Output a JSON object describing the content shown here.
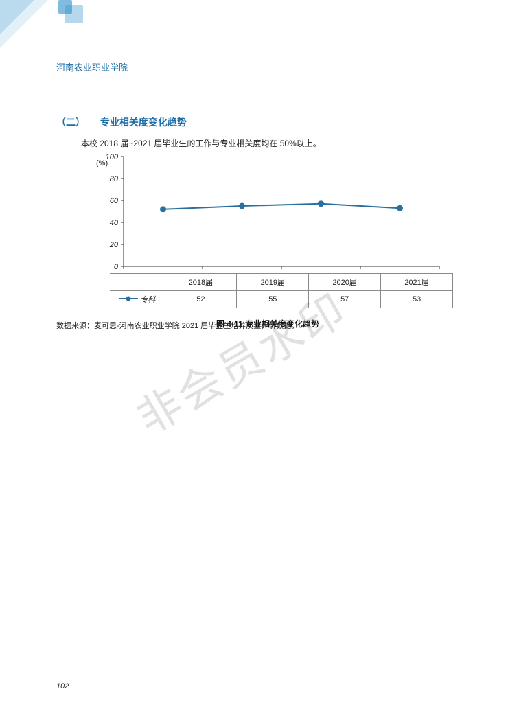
{
  "header": {
    "institution": "河南农业职业学院"
  },
  "section": {
    "number": "（二）",
    "title": "专业相关度变化趋势"
  },
  "intro": "本校 2018 届~2021 届毕业生的工作与专业相关度均在 50%以上。",
  "chart": {
    "type": "line",
    "unit": "(%)",
    "ylim": [
      0,
      100
    ],
    "ytick_step": 20,
    "yticks": [
      "0",
      "20",
      "40",
      "60",
      "80",
      "100"
    ],
    "categories": [
      "2018届",
      "2019届",
      "2020届",
      "2021届"
    ],
    "series_name": "专科",
    "values": [
      52,
      55,
      57,
      53
    ],
    "line_color": "#2b6f9e",
    "marker_color": "#2b6f9e",
    "marker_size": 4.5,
    "line_width": 2,
    "grid_color": "#9aa0a6",
    "axis_color": "#333333",
    "background_color": "#ffffff",
    "tick_fontsize": 11,
    "label_fontsize": 11
  },
  "figure_caption": "图 4-11    专业相关度变化趋势",
  "data_source": "数据来源：麦可思-河南农业职业学院 2021 届毕业生培养质量评价数据。",
  "watermark": "非会员水印",
  "page_number": "102",
  "corner_color": "#1b6ea8"
}
